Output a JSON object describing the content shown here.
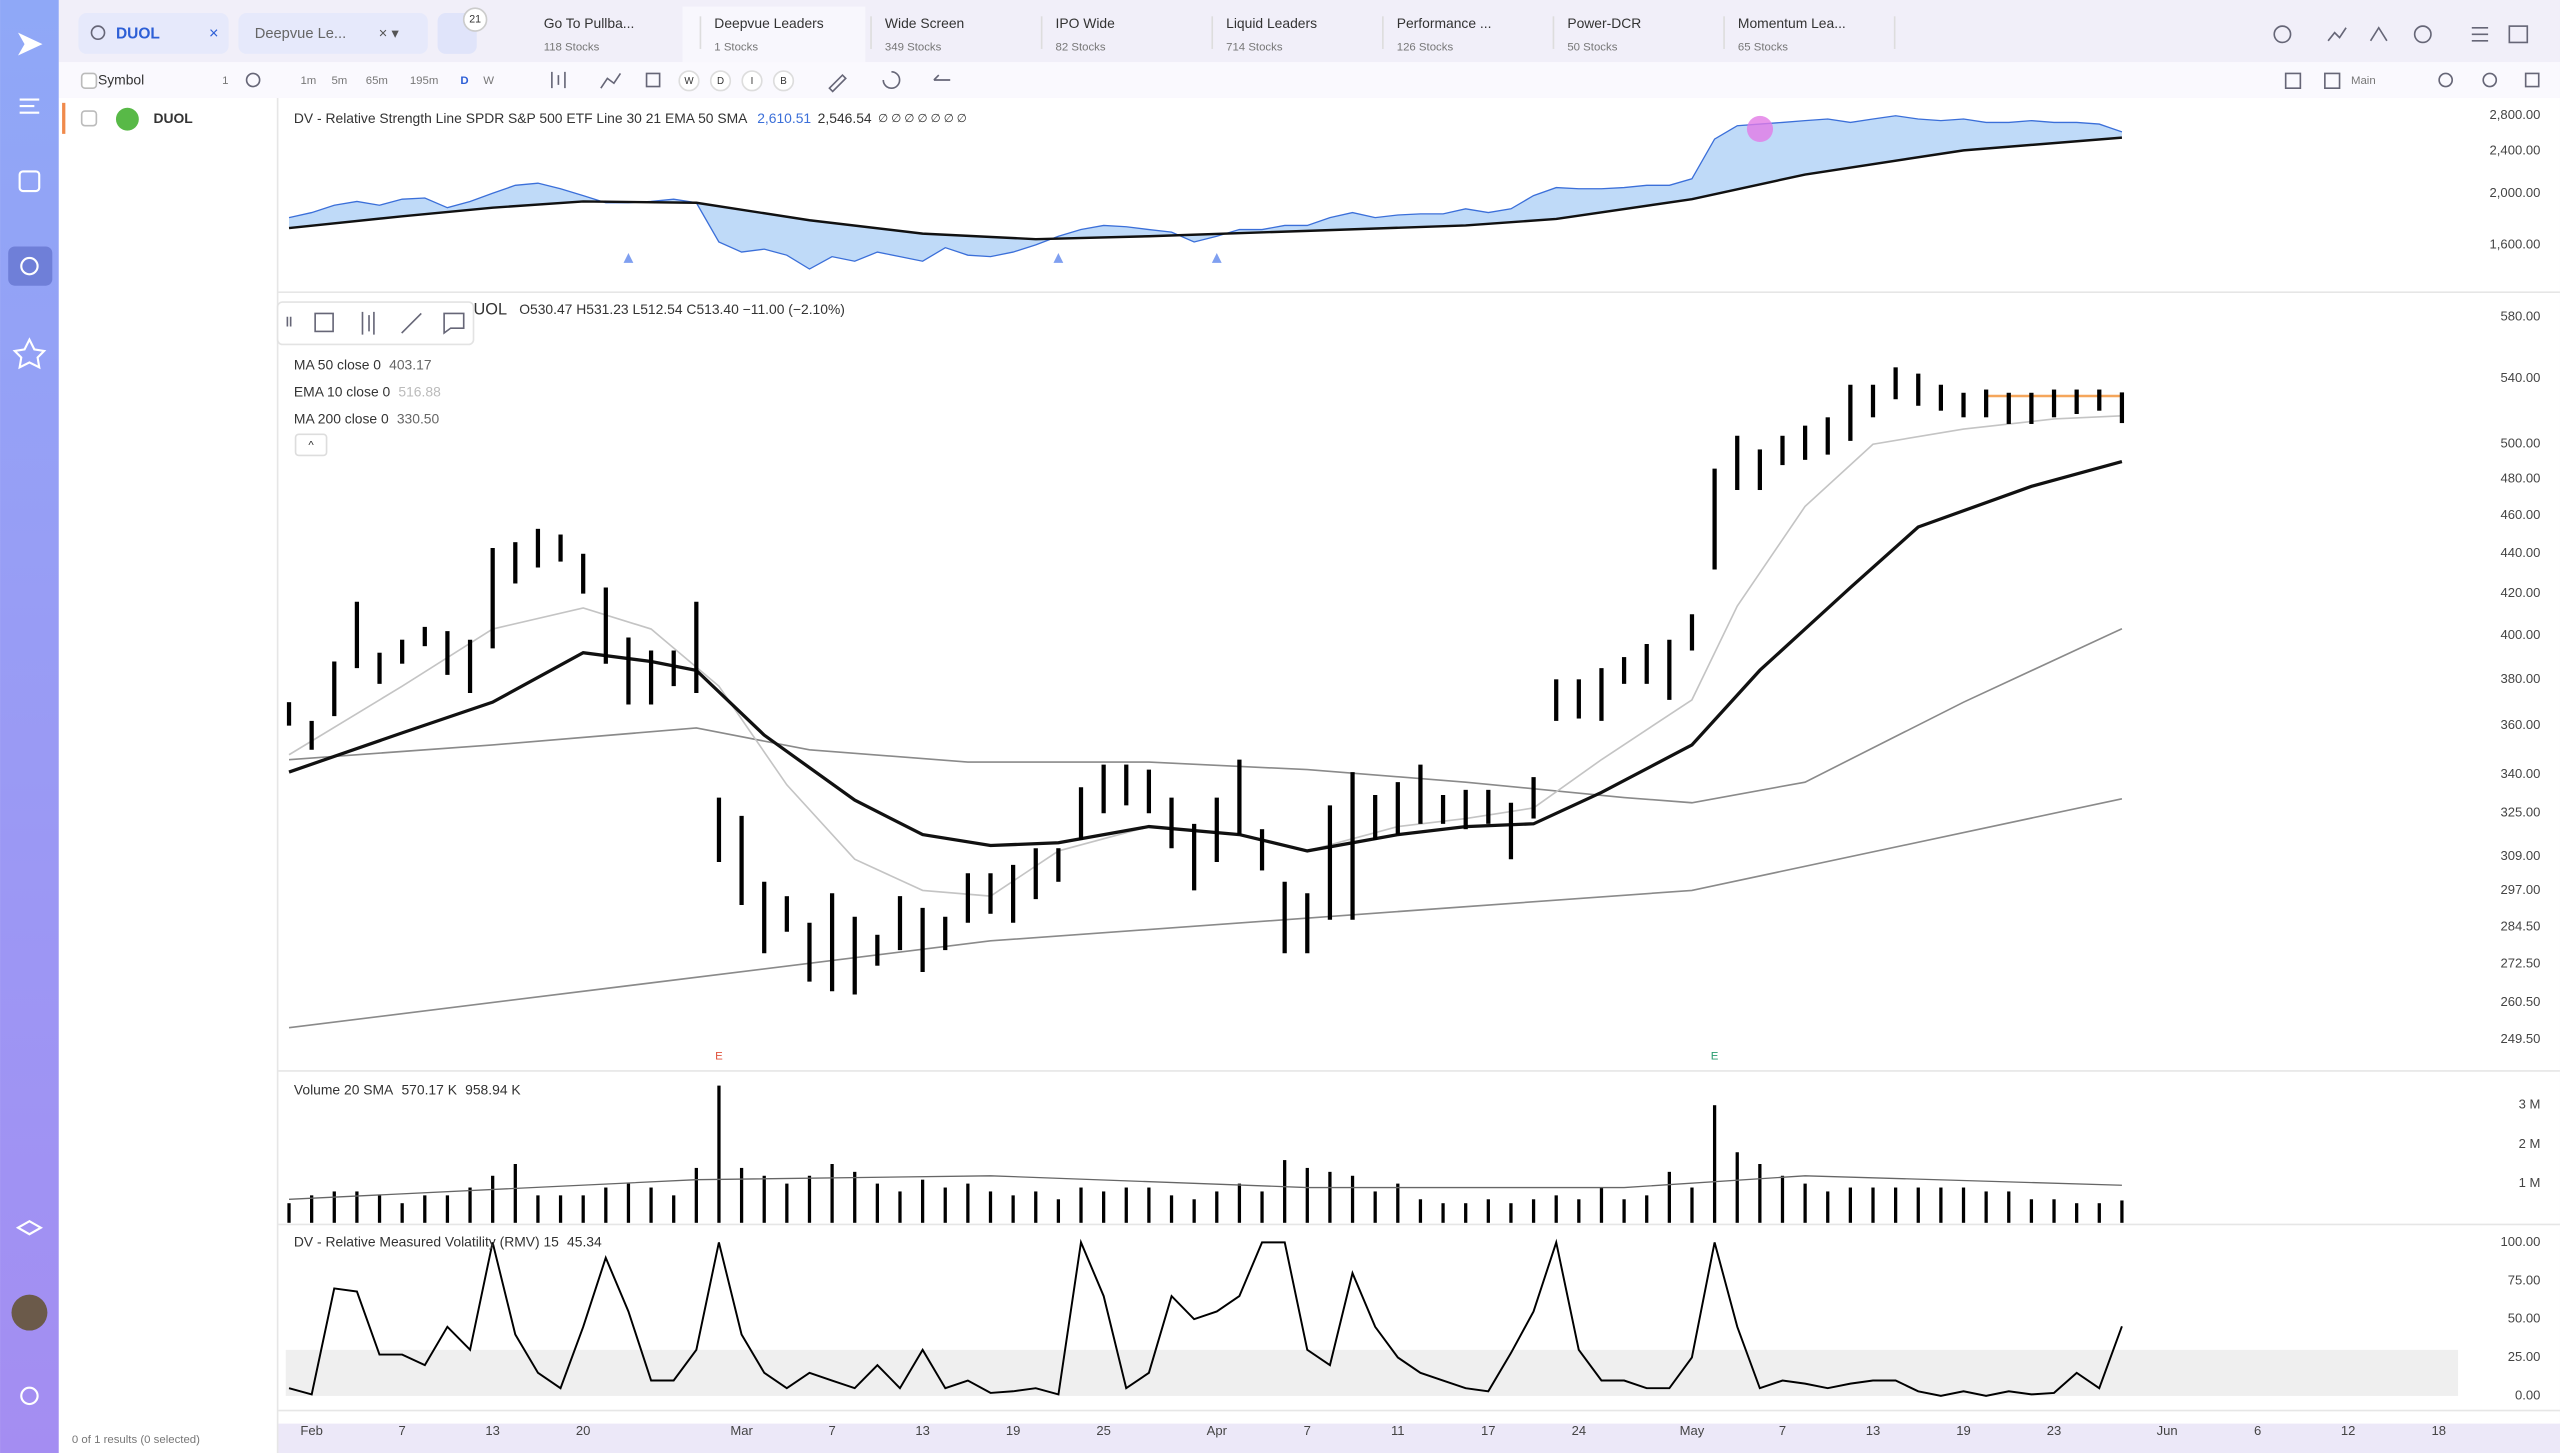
{
  "search": "DUOL",
  "watchlist_select": "Deepvue Le...",
  "badge": "21",
  "tabs": [
    {
      "name": "Go To Pullba...",
      "count": "118 Stocks"
    },
    {
      "name": "Deepvue Leaders",
      "count": "1 Stocks"
    },
    {
      "name": "Wide Screen",
      "count": "349 Stocks"
    },
    {
      "name": "IPO Wide",
      "count": "82 Stocks"
    },
    {
      "name": "Liquid Leaders",
      "count": "714 Stocks"
    },
    {
      "name": "Performance ...",
      "count": "126 Stocks"
    },
    {
      "name": "Power-DCR",
      "count": "50 Stocks"
    },
    {
      "name": "Momentum Lea...",
      "count": "65 Stocks"
    }
  ],
  "toolbar": {
    "symbol": "Symbol",
    "count": "1",
    "intervals": [
      "1m",
      "5m",
      "65m",
      "195m",
      "D",
      "W"
    ],
    "chips": [
      "W",
      "D",
      "I",
      "B"
    ],
    "layout": "Main"
  },
  "watchlist": [
    {
      "symbol": "DUOL"
    }
  ],
  "footer": "0 of 1 results (0 selected)",
  "chart_data": [
    {
      "type": "area",
      "title": "DV - Relative Strength Line SPDR S&P 500 ETF Line 30 21 EMA 50 SMA",
      "legend_values": [
        "2,610.51",
        "2,546.54"
      ],
      "legend_flags": "∅ ∅ ∅ ∅ ∅ ∅ ∅",
      "log": true,
      "xlim": [
        0,
        96
      ],
      "ylim": [
        1312,
        2981
      ],
      "yticks": [
        {
          "value": 2800,
          "label": "2,800.00"
        },
        {
          "value": 2400,
          "label": "2,400.00"
        },
        {
          "value": 2000,
          "label": "2,000.00"
        },
        {
          "value": 1600,
          "label": "1,600.00"
        }
      ],
      "series": [
        {
          "color": "#3b6fd9",
          "fill": "#a9cdf5",
          "values": [
            1800,
            1840,
            1900,
            1930,
            1900,
            1950,
            1960,
            1880,
            1930,
            2000,
            2070,
            2090,
            2040,
            1980,
            1920,
            1920,
            1930,
            1950,
            1920,
            1620,
            1550,
            1570,
            1530,
            1440,
            1520,
            1490,
            1550,
            1520,
            1490,
            1580,
            1530,
            1520,
            1550,
            1600,
            1660,
            1710,
            1740,
            1730,
            1710,
            1690,
            1620,
            1660,
            1710,
            1710,
            1740,
            1740,
            1800,
            1840,
            1800,
            1820,
            1830,
            1830,
            1870,
            1840,
            1870,
            1980,
            2050,
            2040,
            2040,
            2050,
            2070,
            2070,
            2130,
            2530,
            2680,
            2700,
            2720,
            2740,
            2760,
            2720,
            2760,
            2800,
            2760,
            2740,
            2760,
            2720,
            2720,
            2740,
            2720,
            2720,
            2700,
            2610.51
          ]
        },
        {
          "color": "#111111",
          "x": [
            0,
            5,
            9,
            13,
            18,
            23,
            28,
            33,
            38,
            45,
            52,
            56,
            62,
            67,
            74,
            81
          ],
          "values": [
            1720,
            1810,
            1880,
            1930,
            1920,
            1780,
            1680,
            1640,
            1660,
            1700,
            1740,
            1790,
            1950,
            2170,
            2410,
            2546.54
          ]
        }
      ],
      "markers": [
        15,
        34,
        41
      ],
      "marker_color": "#7f9ff0"
    },
    {
      "type": "hilo",
      "title": "UOL",
      "ohlc": "O530.47 H531.23 L512.54 C513.40 −11.00 (−2.10%)",
      "log": true,
      "xlim": [
        0,
        96
      ],
      "ylim": [
        241,
        596
      ],
      "color": "#000000",
      "yticks": [
        {
          "value": 580,
          "label": "580.00"
        },
        {
          "value": 540,
          "label": "540.00"
        },
        {
          "value": 500,
          "label": "500.00"
        },
        {
          "value": 480,
          "label": "480.00"
        },
        {
          "value": 460,
          "label": "460.00"
        },
        {
          "value": 440,
          "label": "440.00"
        },
        {
          "value": 420,
          "label": "420.00"
        },
        {
          "value": 400,
          "label": "400.00"
        },
        {
          "value": 380,
          "label": "380.00"
        },
        {
          "value": 360,
          "label": "360.00"
        },
        {
          "value": 340,
          "label": "340.00"
        },
        {
          "value": 325,
          "label": "325.00"
        },
        {
          "value": 309,
          "label": "309.00"
        },
        {
          "value": 297,
          "label": "297.00"
        },
        {
          "value": 284.5,
          "label": "284.50"
        },
        {
          "value": 272.5,
          "label": "272.50"
        },
        {
          "value": 260.5,
          "label": "260.50"
        },
        {
          "value": 249.5,
          "label": "249.50"
        }
      ],
      "high": [
        370,
        362,
        388,
        416,
        392,
        398,
        404,
        402,
        398,
        443,
        446,
        453,
        450,
        440,
        423,
        399,
        393,
        393,
        416,
        331,
        324,
        300,
        295,
        286,
        296,
        288,
        282,
        295,
        291,
        288,
        303,
        303,
        306,
        312,
        312,
        335,
        344,
        344,
        342,
        331,
        321,
        331,
        346,
        319,
        300,
        296,
        328,
        341,
        332,
        337,
        344,
        332,
        334,
        334,
        329,
        339,
        380,
        380,
        385,
        390,
        396,
        398,
        410,
        486,
        505,
        497,
        505,
        511,
        516,
        536,
        536,
        547,
        543,
        536,
        531,
        533,
        531,
        531,
        533,
        533,
        533,
        531.23
      ],
      "low": [
        360,
        350,
        364,
        385,
        378,
        387,
        395,
        382,
        374,
        394,
        425,
        433,
        436,
        420,
        387,
        369,
        369,
        377,
        374,
        307,
        292,
        276,
        283,
        267,
        264,
        263,
        272,
        277,
        270,
        277,
        286,
        289,
        286,
        294,
        300,
        315,
        325,
        328,
        325,
        312,
        297,
        307,
        317,
        304,
        276,
        276,
        287,
        287,
        315,
        317,
        321,
        321,
        319,
        321,
        308,
        323,
        362,
        363,
        362,
        378,
        378,
        371,
        393,
        432,
        474,
        474,
        488,
        491,
        494,
        502,
        516,
        527,
        523,
        520,
        516,
        516,
        512,
        512,
        516,
        518,
        520,
        512.54
      ],
      "lines": [
        {
          "name": "MA 50 close 0",
          "value_label": "403.17",
          "color": "#8a8a8a",
          "width": 1,
          "x": [
            0,
            9,
            18,
            23,
            30,
            38,
            45,
            52,
            59,
            62,
            67,
            74,
            81
          ],
          "values": [
            346,
            352,
            359,
            350,
            345,
            345,
            342,
            337,
            331,
            329,
            337,
            370,
            403.17
          ]
        },
        {
          "name": "EMA 10 close 0",
          "value_label": "516.88",
          "color": "#c4c4c4",
          "width": 1,
          "x": [
            0,
            5,
            9,
            13,
            16,
            19,
            22,
            25,
            28,
            31,
            34,
            38,
            42,
            45,
            49,
            52,
            55,
            58,
            62,
            64,
            67,
            70,
            74,
            78,
            81
          ],
          "values": [
            348,
            377,
            403,
            413,
            403,
            377,
            336,
            308,
            297,
            295,
            311,
            320,
            317,
            311,
            320,
            323,
            327,
            346,
            371,
            414,
            465,
            500,
            509,
            515,
            516.88
          ]
        },
        {
          "name": "MA 200 close 0",
          "value_label": "330.50",
          "color": "#8a8a8a",
          "width": 1,
          "x": [
            0,
            31,
            62,
            81
          ],
          "values": [
            253,
            280,
            297,
            330.5
          ]
        },
        {
          "color": "#111111",
          "width": 2,
          "x": [
            0,
            5,
            9,
            13,
            16,
            18,
            21,
            25,
            28,
            31,
            34,
            38,
            42,
            45,
            49,
            52,
            55,
            58,
            62,
            65,
            69,
            72,
            77,
            81
          ],
          "values": [
            341,
            357,
            370,
            392,
            388,
            384,
            356,
            330,
            317,
            313,
            314,
            320,
            317,
            311,
            317,
            320,
            321,
            333,
            352,
            384,
            423,
            454,
            476,
            490
          ]
        }
      ],
      "pivot": {
        "value": 529,
        "x": [
          75,
          81
        ],
        "color": "#f5a65b"
      },
      "earnings": [
        {
          "x": 19,
          "label": "E",
          "color": "#e0533d"
        },
        {
          "x": 63,
          "label": "E",
          "color": "#2a9d6f"
        }
      ]
    },
    {
      "type": "bar",
      "title": "Volume 20 SMA",
      "legend_values": [
        "570.17 K",
        "958.94 K"
      ],
      "xlim": [
        0,
        96
      ],
      "ylim": [
        0,
        3790000
      ],
      "color": "#000000",
      "yticks": [
        {
          "value": 3000000,
          "label": "3 M"
        },
        {
          "value": 2000000,
          "label": "2 M"
        },
        {
          "value": 1000000,
          "label": "1 M"
        }
      ],
      "values": [
        500000,
        700000,
        800000,
        800000,
        700000,
        500000,
        700000,
        700000,
        900000,
        1200000,
        1500000,
        700000,
        700000,
        700000,
        900000,
        1000000,
        900000,
        700000,
        1400000,
        3500000,
        1400000,
        1200000,
        1000000,
        1200000,
        1500000,
        1300000,
        1000000,
        800000,
        1100000,
        900000,
        1000000,
        800000,
        700000,
        800000,
        600000,
        900000,
        800000,
        900000,
        900000,
        700000,
        600000,
        800000,
        1000000,
        800000,
        1600000,
        1400000,
        1300000,
        1200000,
        800000,
        1000000,
        600000,
        500000,
        500000,
        600000,
        500000,
        600000,
        700000,
        600000,
        900000,
        600000,
        700000,
        1300000,
        900000,
        3000000,
        1800000,
        1500000,
        1200000,
        1000000,
        800000,
        900000,
        900000,
        900000,
        900000,
        900000,
        900000,
        800000,
        800000,
        600000,
        600000,
        500000,
        500000,
        570170
      ],
      "sma": {
        "color": "#666666",
        "x": [
          0,
          18,
          31,
          45,
          59,
          67,
          81
        ],
        "values": [
          600000,
          1100000,
          1200000,
          900000,
          900000,
          1200000,
          958940
        ]
      }
    },
    {
      "type": "line",
      "title": "DV - Relative Measured Volatility (RMV) 15",
      "legend_values": [
        "45.34"
      ],
      "xlim": [
        0,
        96
      ],
      "ylim": [
        -7.4,
        109.6
      ],
      "color": "#000000",
      "band": [
        0,
        30
      ],
      "yticks": [
        {
          "value": 100,
          "label": "100.00"
        },
        {
          "value": 75,
          "label": "75.00"
        },
        {
          "value": 50,
          "label": "50.00"
        },
        {
          "value": 25,
          "label": "25.00"
        },
        {
          "value": 0,
          "label": "0.00"
        }
      ],
      "values": [
        5,
        1,
        70,
        68,
        27,
        27,
        20,
        45,
        30,
        100,
        40,
        15,
        5,
        45,
        90,
        55,
        10,
        10,
        30,
        100,
        40,
        15,
        5,
        15,
        10,
        5,
        20,
        5,
        30,
        5,
        10,
        2,
        3,
        5,
        1,
        100,
        65,
        5,
        15,
        65,
        50,
        55,
        65,
        100,
        100,
        30,
        20,
        80,
        45,
        25,
        15,
        10,
        5,
        3,
        28,
        55,
        100,
        30,
        10,
        10,
        5,
        5,
        25,
        100,
        45,
        5,
        10,
        8,
        5,
        8,
        10,
        10,
        3,
        0,
        3,
        0,
        3,
        1,
        2,
        15,
        5,
        45.34
      ],
      "xticks": [
        {
          "value": 1,
          "label": "Feb"
        },
        {
          "value": 5,
          "label": "7"
        },
        {
          "value": 9,
          "label": "13"
        },
        {
          "value": 13,
          "label": "20"
        },
        {
          "value": 20,
          "label": "Mar"
        },
        {
          "value": 24,
          "label": "7"
        },
        {
          "value": 28,
          "label": "13"
        },
        {
          "value": 32,
          "label": "19"
        },
        {
          "value": 36,
          "label": "25"
        },
        {
          "value": 41,
          "label": "Apr"
        },
        {
          "value": 45,
          "label": "7"
        },
        {
          "value": 49,
          "label": "11"
        },
        {
          "value": 53,
          "label": "17"
        },
        {
          "value": 57,
          "label": "24"
        },
        {
          "value": 62,
          "label": "May"
        },
        {
          "value": 66,
          "label": "7"
        },
        {
          "value": 70,
          "label": "13"
        },
        {
          "value": 74,
          "label": "19"
        },
        {
          "value": 78,
          "label": "23"
        },
        {
          "value": 83,
          "label": "Jun"
        },
        {
          "value": 87,
          "label": "6"
        },
        {
          "value": 91,
          "label": "12"
        },
        {
          "value": 95,
          "label": "18"
        }
      ]
    }
  ]
}
